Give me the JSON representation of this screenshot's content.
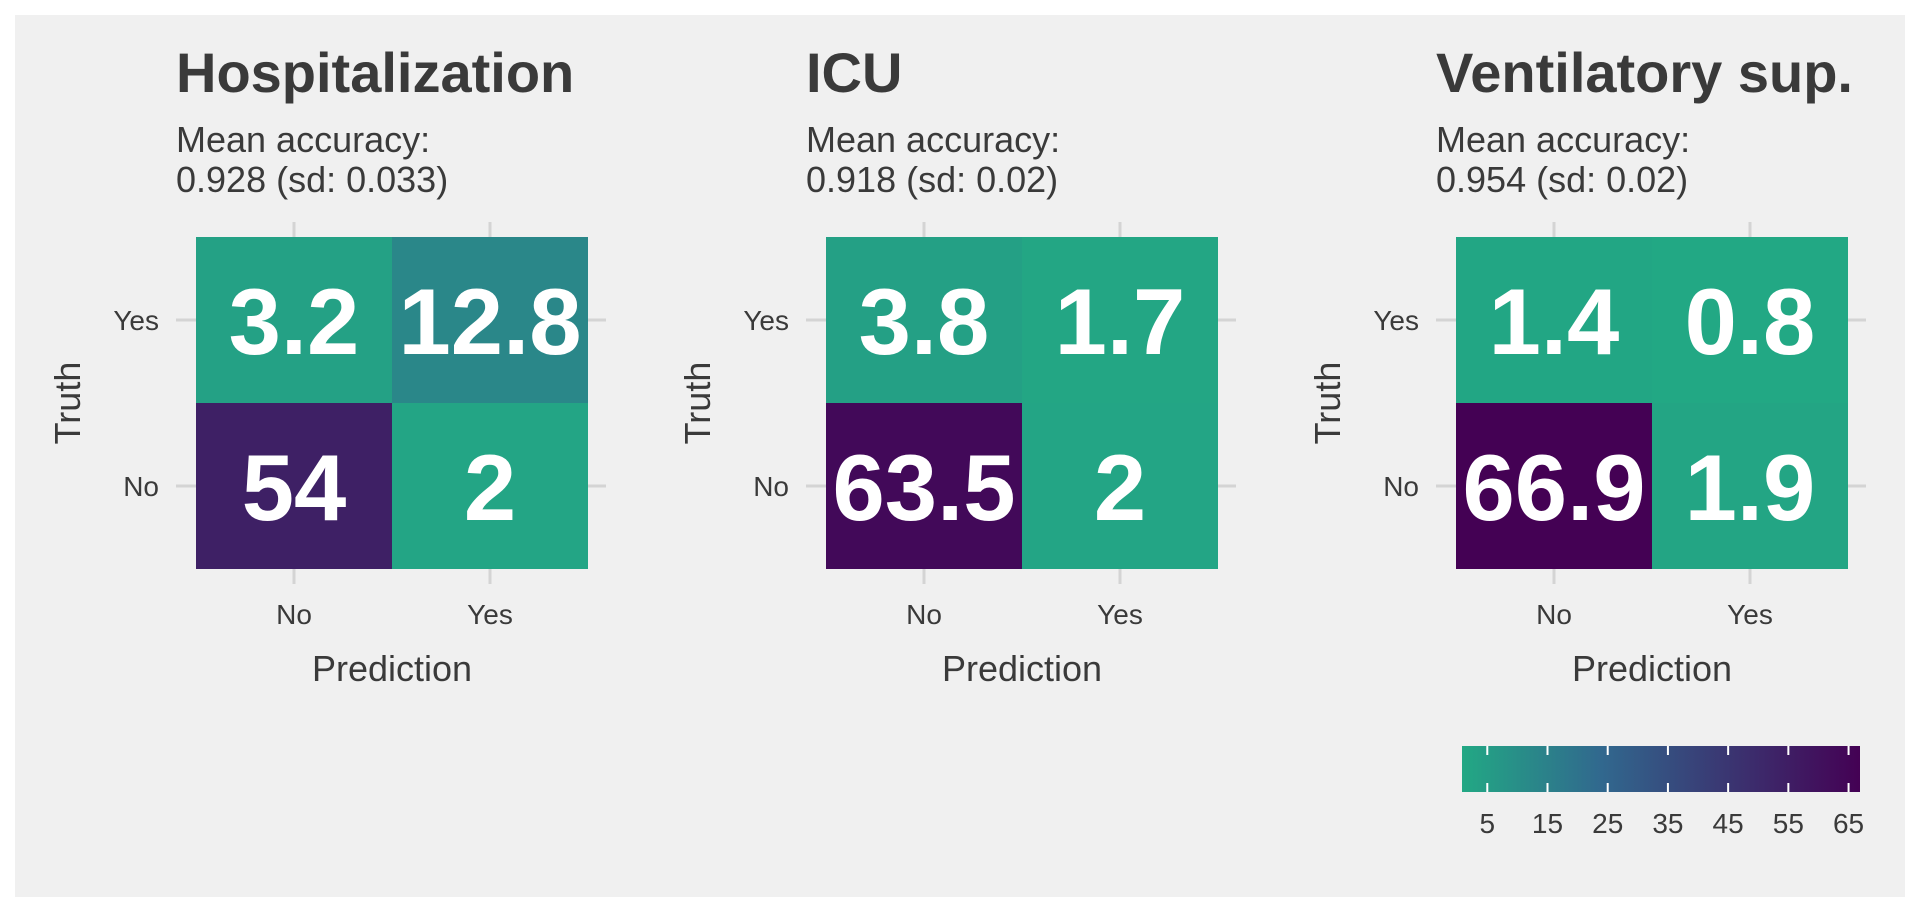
{
  "chart_data": {
    "type": "heatmap",
    "colors": {
      "low": "#22A884",
      "mid": "#31688E",
      "high": "#440154",
      "background": "#F0F0F0"
    },
    "colorbar": {
      "ticks": [
        5,
        15,
        25,
        35,
        45,
        55,
        65
      ],
      "range": [
        0.8,
        66.9
      ]
    },
    "panels": [
      {
        "title": "Hospitalization",
        "subtitle_line1": "Mean accuracy:",
        "subtitle_line2": "0.928 (sd: 0.033)",
        "xlabel": "Prediction",
        "ylabel": "Truth",
        "x_categories": [
          "No",
          "Yes"
        ],
        "y_categories": [
          "Yes",
          "No"
        ],
        "cells": [
          {
            "truth": "Yes",
            "prediction": "No",
            "value": 3.2,
            "label": "3.2"
          },
          {
            "truth": "Yes",
            "prediction": "Yes",
            "value": 12.8,
            "label": "12.8"
          },
          {
            "truth": "No",
            "prediction": "No",
            "value": 54,
            "label": "54"
          },
          {
            "truth": "No",
            "prediction": "Yes",
            "value": 2,
            "label": "2"
          }
        ]
      },
      {
        "title": "ICU",
        "subtitle_line1": "Mean accuracy:",
        "subtitle_line2": "0.918 (sd: 0.02)",
        "xlabel": "Prediction",
        "ylabel": "Truth",
        "x_categories": [
          "No",
          "Yes"
        ],
        "y_categories": [
          "Yes",
          "No"
        ],
        "cells": [
          {
            "truth": "Yes",
            "prediction": "No",
            "value": 3.8,
            "label": "3.8"
          },
          {
            "truth": "Yes",
            "prediction": "Yes",
            "value": 1.7,
            "label": "1.7"
          },
          {
            "truth": "No",
            "prediction": "No",
            "value": 63.5,
            "label": "63.5"
          },
          {
            "truth": "No",
            "prediction": "Yes",
            "value": 2,
            "label": "2"
          }
        ]
      },
      {
        "title": "Ventilatory sup.",
        "subtitle_line1": "Mean accuracy:",
        "subtitle_line2": "0.954 (sd: 0.02)",
        "xlabel": "Prediction",
        "ylabel": "Truth",
        "x_categories": [
          "No",
          "Yes"
        ],
        "y_categories": [
          "Yes",
          "No"
        ],
        "cells": [
          {
            "truth": "Yes",
            "prediction": "No",
            "value": 1.4,
            "label": "1.4"
          },
          {
            "truth": "Yes",
            "prediction": "Yes",
            "value": 0.8,
            "label": "0.8"
          },
          {
            "truth": "No",
            "prediction": "No",
            "value": 66.9,
            "label": "66.9"
          },
          {
            "truth": "No",
            "prediction": "Yes",
            "value": 1.9,
            "label": "1.9"
          }
        ]
      }
    ]
  }
}
